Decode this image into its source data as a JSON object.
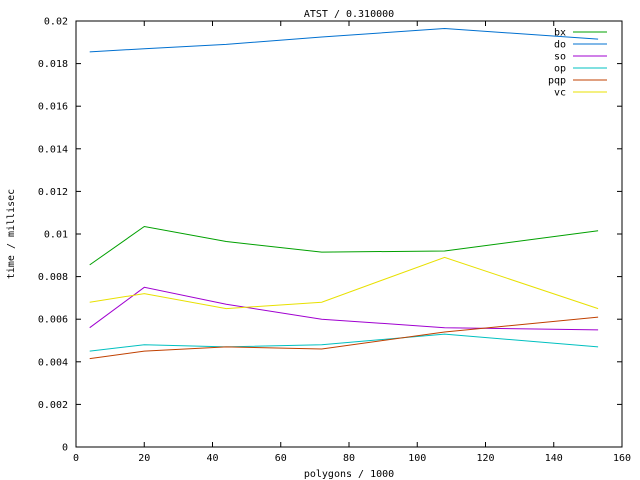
{
  "chart_data": {
    "type": "line",
    "title": "ATST / 0.310000",
    "xlabel": "polygons / 1000",
    "ylabel": "time / millisec",
    "xlim": [
      0,
      160
    ],
    "ylim": [
      0,
      0.02
    ],
    "x_ticks": [
      0,
      20,
      40,
      60,
      80,
      100,
      120,
      140,
      160
    ],
    "y_ticks": [
      0,
      0.002,
      0.004,
      0.006,
      0.008,
      0.01,
      0.012,
      0.014,
      0.016,
      0.018,
      0.02
    ],
    "x_tick_labels": [
      "0",
      "20",
      "40",
      "60",
      "80",
      "100",
      "120",
      "140",
      "160"
    ],
    "y_tick_labels": [
      "0",
      "0.002",
      "0.004",
      "0.006",
      "0.008",
      "0.01",
      "0.012",
      "0.014",
      "0.016",
      "0.018",
      "0.02"
    ],
    "grid": false,
    "legend_position": "top-right",
    "x": [
      4,
      20,
      44,
      72,
      108,
      153
    ],
    "series": [
      {
        "name": "bx",
        "color": "#00a000",
        "values": [
          0.00855,
          0.01035,
          0.00965,
          0.00915,
          0.0092,
          0.01015
        ]
      },
      {
        "name": "do",
        "color": "#0070d0",
        "values": [
          0.01855,
          0.0187,
          0.0189,
          0.01925,
          0.01965,
          0.01915
        ]
      },
      {
        "name": "so",
        "color": "#a000d0",
        "values": [
          0.0056,
          0.0075,
          0.0067,
          0.006,
          0.0056,
          0.0055
        ]
      },
      {
        "name": "op",
        "color": "#00c0c0",
        "values": [
          0.0045,
          0.0048,
          0.0047,
          0.0048,
          0.0053,
          0.0047
        ]
      },
      {
        "name": "pqp",
        "color": "#c04000",
        "values": [
          0.00415,
          0.0045,
          0.0047,
          0.0046,
          0.0054,
          0.0061
        ]
      },
      {
        "name": "vc",
        "color": "#e8e000",
        "values": [
          0.0068,
          0.0072,
          0.0065,
          0.0068,
          0.0089,
          0.0065
        ]
      }
    ]
  }
}
